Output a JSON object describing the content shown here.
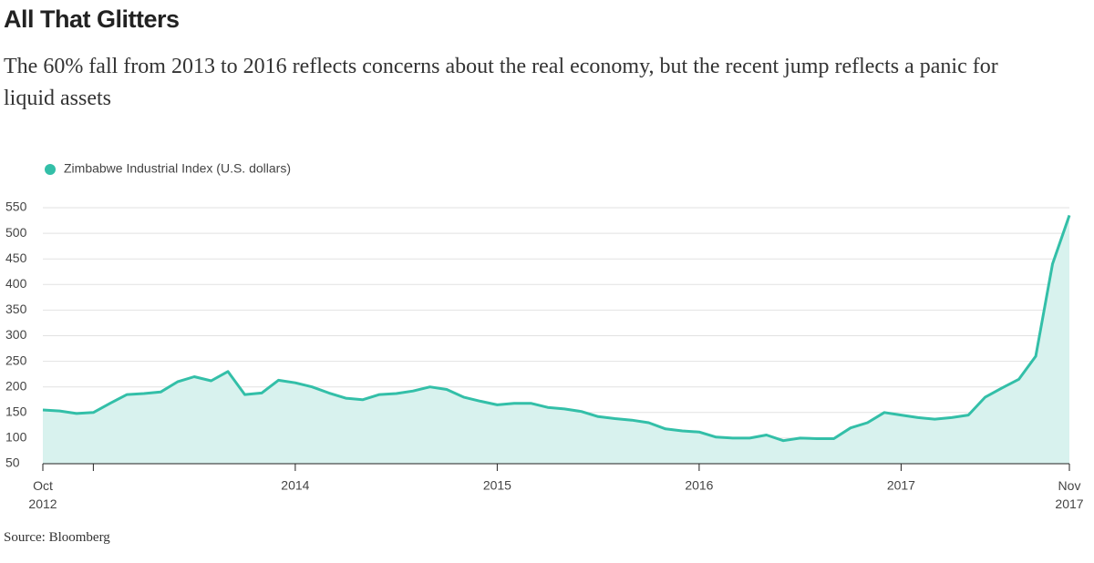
{
  "chart_data": {
    "type": "area",
    "title": "All That Glitters",
    "subtitle": "The 60% fall from 2013 to 2016 reflects concerns about the real economy, but the recent jump reflects a panic for liquid assets",
    "source": "Source: Bloomberg",
    "x": [
      "2012-10",
      "2012-11",
      "2012-12",
      "2013-01",
      "2013-02",
      "2013-03",
      "2013-04",
      "2013-05",
      "2013-06",
      "2013-07",
      "2013-08",
      "2013-09",
      "2013-10",
      "2013-11",
      "2013-12",
      "2014-01",
      "2014-02",
      "2014-03",
      "2014-04",
      "2014-05",
      "2014-06",
      "2014-07",
      "2014-08",
      "2014-09",
      "2014-10",
      "2014-11",
      "2014-12",
      "2015-01",
      "2015-02",
      "2015-03",
      "2015-04",
      "2015-05",
      "2015-06",
      "2015-07",
      "2015-08",
      "2015-09",
      "2015-10",
      "2015-11",
      "2015-12",
      "2016-01",
      "2016-02",
      "2016-03",
      "2016-04",
      "2016-05",
      "2016-06",
      "2016-07",
      "2016-08",
      "2016-09",
      "2016-10",
      "2016-11",
      "2016-12",
      "2017-01",
      "2017-02",
      "2017-03",
      "2017-04",
      "2017-05",
      "2017-06",
      "2017-07",
      "2017-08",
      "2017-09",
      "2017-10",
      "2017-11"
    ],
    "series": [
      {
        "name": "Zimbabwe Industrial Index (U.S. dollars)",
        "color": "#33bfa8",
        "fill": "#d8f2ee",
        "values": [
          155,
          153,
          148,
          150,
          168,
          185,
          187,
          190,
          210,
          220,
          212,
          230,
          185,
          188,
          213,
          208,
          200,
          188,
          178,
          175,
          185,
          187,
          192,
          200,
          195,
          180,
          172,
          165,
          168,
          168,
          160,
          157,
          152,
          142,
          138,
          135,
          130,
          118,
          114,
          112,
          102,
          100,
          100,
          106,
          95,
          100,
          99,
          99,
          120,
          130,
          150,
          145,
          140,
          137,
          140,
          145,
          180,
          198,
          215,
          260,
          440,
          535
        ]
      }
    ],
    "xlim": [
      "2012-10",
      "2017-11"
    ],
    "xticks": [
      {
        "value": "2012-10",
        "label": "Oct 2012"
      },
      {
        "value": "2013-01",
        "label": null
      },
      {
        "value": "2014-01",
        "label": "2014"
      },
      {
        "value": "2015-01",
        "label": "2015"
      },
      {
        "value": "2016-01",
        "label": "2016"
      },
      {
        "value": "2017-01",
        "label": "2017"
      },
      {
        "value": "2017-11",
        "label": "Nov 2017"
      }
    ],
    "ylim": [
      50,
      550
    ],
    "yticks": [
      50,
      100,
      150,
      200,
      250,
      300,
      350,
      400,
      450,
      500,
      550
    ],
    "grid": true
  }
}
